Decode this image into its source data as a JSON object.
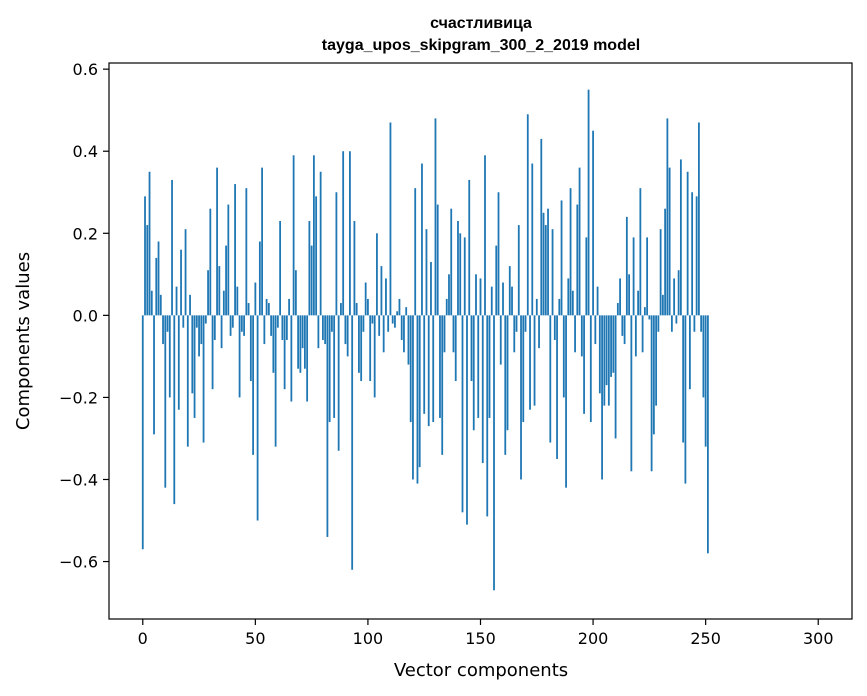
{
  "chart_data": {
    "type": "bar",
    "title": "счастливица",
    "subtitle": "tayga_upos_skipgram_300_2_2019 model",
    "xlabel": "Vector components",
    "ylabel": "Components values",
    "xlim": [
      -15,
      315
    ],
    "ylim": [
      -0.74,
      0.615
    ],
    "x_ticks": [
      0,
      50,
      100,
      150,
      200,
      250,
      300
    ],
    "y_ticks": [
      -0.6,
      -0.4,
      -0.2,
      0.0,
      0.2,
      0.4,
      0.6
    ],
    "x_tick_labels": [
      "0",
      "50",
      "100",
      "150",
      "200",
      "250",
      "300"
    ],
    "y_tick_labels": [
      "−0.6",
      "−0.4",
      "−0.2",
      "0.0",
      "0.2",
      "0.4",
      "0.6"
    ],
    "bar_color": "#1f77b4",
    "values": [
      -0.57,
      0.29,
      0.22,
      0.35,
      0.06,
      -0.29,
      0.14,
      0.18,
      0.05,
      -0.07,
      -0.42,
      -0.04,
      -0.2,
      0.33,
      -0.46,
      0.07,
      -0.23,
      0.16,
      -0.03,
      0.21,
      -0.32,
      0.05,
      -0.19,
      -0.25,
      -0.03,
      -0.1,
      -0.07,
      -0.31,
      -0.02,
      0.11,
      0.26,
      -0.18,
      -0.06,
      0.36,
      0.12,
      -0.08,
      0.06,
      0.17,
      0.27,
      -0.05,
      -0.03,
      0.32,
      0.07,
      -0.2,
      -0.04,
      -0.05,
      0.31,
      0.03,
      -0.16,
      -0.34,
      0.08,
      -0.5,
      0.18,
      0.36,
      -0.07,
      0.04,
      0.03,
      -0.05,
      -0.14,
      -0.32,
      -0.03,
      0.23,
      -0.06,
      -0.18,
      -0.06,
      0.04,
      -0.21,
      0.39,
      0.11,
      -0.13,
      -0.14,
      -0.08,
      -0.13,
      -0.21,
      0.23,
      0.17,
      0.39,
      0.29,
      -0.08,
      0.35,
      -0.06,
      -0.07,
      -0.54,
      -0.26,
      -0.04,
      -0.25,
      0.3,
      -0.33,
      0.03,
      0.4,
      -0.07,
      -0.1,
      0.4,
      -0.62,
      0.23,
      0.03,
      -0.14,
      -0.16,
      -0.04,
      0.08,
      0.04,
      -0.16,
      -0.02,
      -0.2,
      0.2,
      -0.05,
      0.12,
      -0.09,
      0.09,
      -0.04,
      0.47,
      -0.02,
      -0.03,
      0.01,
      0.04,
      -0.06,
      -0.09,
      0.02,
      -0.12,
      -0.26,
      -0.4,
      0.31,
      -0.41,
      -0.37,
      0.37,
      -0.24,
      0.21,
      -0.27,
      0.13,
      -0.26,
      0.48,
      0.27,
      -0.25,
      -0.34,
      -0.09,
      0.04,
      0.1,
      0.26,
      -0.09,
      -0.16,
      0.23,
      0.2,
      -0.48,
      0.19,
      -0.51,
      0.33,
      -0.16,
      -0.28,
      0.1,
      -0.25,
      0.09,
      -0.36,
      0.39,
      -0.49,
      -0.25,
      0.07,
      -0.67,
      0.17,
      0.3,
      -0.12,
      0.08,
      -0.34,
      -0.28,
      0.12,
      0.07,
      -0.09,
      -0.04,
      0.22,
      -0.4,
      -0.26,
      -0.04,
      0.49,
      -0.23,
      0.37,
      -0.22,
      0.04,
      -0.08,
      0.43,
      0.25,
      0.22,
      0.26,
      -0.31,
      0.21,
      -0.06,
      -0.35,
      0.04,
      0.28,
      -0.2,
      -0.42,
      0.09,
      0.31,
      0.06,
      -0.09,
      0.27,
      0.36,
      -0.1,
      -0.24,
      0.19,
      0.55,
      -0.26,
      0.45,
      -0.07,
      0.07,
      -0.19,
      -0.4,
      -0.22,
      -0.17,
      -0.22,
      -0.15,
      -0.14,
      -0.3,
      0.03,
      0.09,
      -0.05,
      -0.07,
      0.24,
      0.1,
      -0.38,
      0.19,
      -0.1,
      0.06,
      0.31,
      -0.09,
      0.02,
      0.19,
      -0.01,
      -0.38,
      -0.29,
      -0.22,
      -0.04,
      0.21,
      0.05,
      0.26,
      0.48,
      0.36,
      -0.04,
      0.09,
      -0.02,
      0.11,
      0.38,
      -0.31,
      -0.41,
      0.35,
      -0.18,
      0.3,
      -0.04,
      0.29,
      0.47,
      -0.04,
      -0.2,
      -0.32,
      -0.58
    ]
  }
}
